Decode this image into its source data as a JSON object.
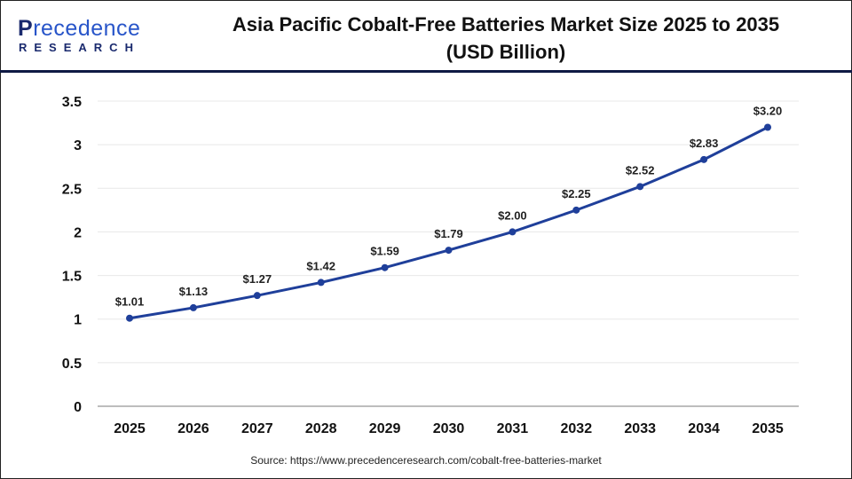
{
  "logo": {
    "main_first": "P",
    "main_rest": "recedence",
    "sub": "RESEARCH"
  },
  "header": {
    "title_line1": "Asia Pacific Cobalt-Free Batteries Market Size 2025 to 2035",
    "title_line2": "(USD Billion)"
  },
  "source": "Source: https://www.precedenceresearch.com/cobalt-free-batteries-market",
  "colors": {
    "line": "#1f3f9a",
    "header_rule": "#0f1a44",
    "grid": "#e8e8e8",
    "axis": "#bdbdbd"
  },
  "chart_data": {
    "type": "line",
    "title": "Asia Pacific Cobalt-Free Batteries Market Size 2025 to 2035 (USD Billion)",
    "categories": [
      "2025",
      "2026",
      "2027",
      "2028",
      "2029",
      "2030",
      "2031",
      "2032",
      "2033",
      "2034",
      "2035"
    ],
    "values": [
      1.01,
      1.13,
      1.27,
      1.42,
      1.59,
      1.79,
      2.0,
      2.25,
      2.52,
      2.83,
      3.2
    ],
    "data_labels": [
      "$1.01",
      "$1.13",
      "$1.27",
      "$1.42",
      "$1.59",
      "$1.79",
      "$2.00",
      "$2.25",
      "$2.52",
      "$2.83",
      "$3.20"
    ],
    "yticks": [
      "0",
      "0.5",
      "1",
      "1.5",
      "2",
      "2.5",
      "3",
      "3.5"
    ],
    "ylim": [
      0,
      3.5
    ],
    "grid": true,
    "xlabel": "",
    "ylabel": ""
  }
}
